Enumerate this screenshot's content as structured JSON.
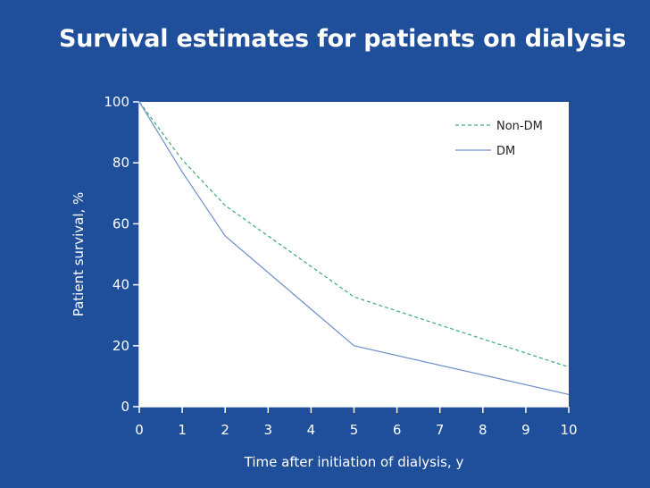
{
  "slide": {
    "title": "Survival estimates for patients on dialysis"
  },
  "colors": {
    "background": "#1f4e9a",
    "plot_background": "#ffffff",
    "non_dm": "#3aaa7a",
    "dm": "#6f8fc9",
    "axis": "#ffffff"
  },
  "chart_data": {
    "type": "line",
    "xlabel": "Time after initiation of dialysis, y",
    "ylabel": "Patient survival, %",
    "xlim": [
      0,
      10
    ],
    "ylim": [
      0,
      100
    ],
    "xticks": [
      "0",
      "1",
      "2",
      "3",
      "4",
      "5",
      "6",
      "7",
      "8",
      "9",
      "10"
    ],
    "yticks": [
      "0",
      "20",
      "40",
      "60",
      "80",
      "100"
    ],
    "grid": false,
    "legend_position": "top-right",
    "series": [
      {
        "name": "Non-DM",
        "style": "dashed",
        "x": [
          0,
          1,
          2,
          5,
          10
        ],
        "y": [
          100,
          81,
          66,
          36,
          13
        ]
      },
      {
        "name": "DM",
        "style": "solid",
        "x": [
          0,
          1,
          2,
          5,
          10
        ],
        "y": [
          100,
          77,
          56,
          20,
          4
        ]
      }
    ]
  }
}
